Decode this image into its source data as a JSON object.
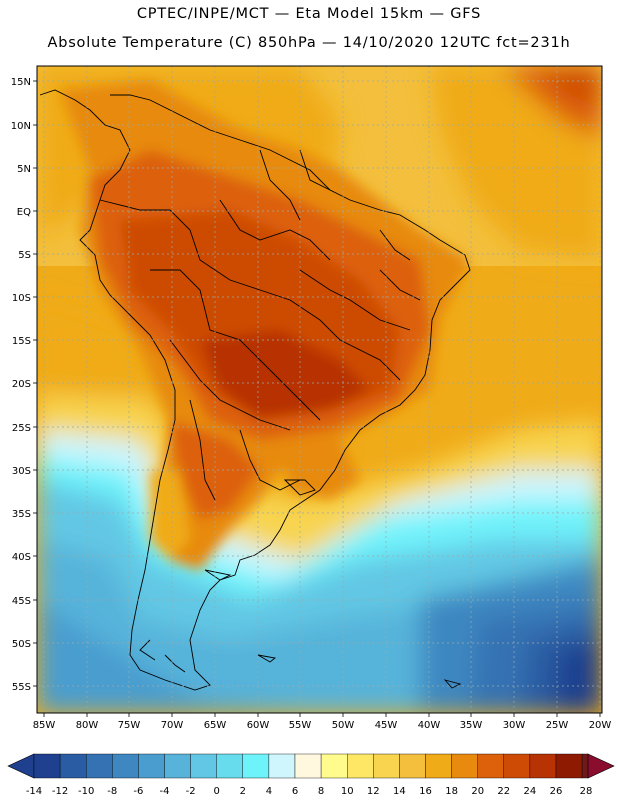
{
  "header": {
    "line1": "CPTEC/INPE/MCT —  Eta Model 15km — GFS",
    "line2": "Absolute Temperature (C) 850hPa — 14/10/2020 12UTC fct=231h"
  },
  "map": {
    "lat_labels": [
      "15N",
      "10N",
      "5N",
      "EQ",
      "5S",
      "10S",
      "15S",
      "20S",
      "25S",
      "30S",
      "35S",
      "40S",
      "45S",
      "50S",
      "55S"
    ],
    "lon_labels": [
      "85W",
      "80W",
      "75W",
      "70W",
      "65W",
      "60W",
      "55W",
      "50W",
      "45W",
      "40W",
      "35W",
      "30W",
      "25W",
      "20W"
    ]
  },
  "colorbar": {
    "labels": [
      "-14",
      "-12",
      "-10",
      "-8",
      "-6",
      "-4",
      "-2",
      "0",
      "2",
      "4",
      "6",
      "8",
      "10",
      "12",
      "14",
      "16",
      "18",
      "20",
      "22",
      "24",
      "26",
      "28"
    ],
    "colors": [
      "#1f3f8f",
      "#2a5ca3",
      "#3472b3",
      "#3e87c1",
      "#4a9dcf",
      "#57b3da",
      "#62c7e4",
      "#67dced",
      "#6ff3fb",
      "#cff5fd",
      "#fff8df",
      "#fffb8c",
      "#fde764",
      "#f8d44f",
      "#f3bf3c",
      "#f0ab18",
      "#e78a0e",
      "#dd600b",
      "#cd4b05",
      "#b73303",
      "#8e1a02",
      "#6e1a16",
      "#8b0d2d"
    ]
  }
}
